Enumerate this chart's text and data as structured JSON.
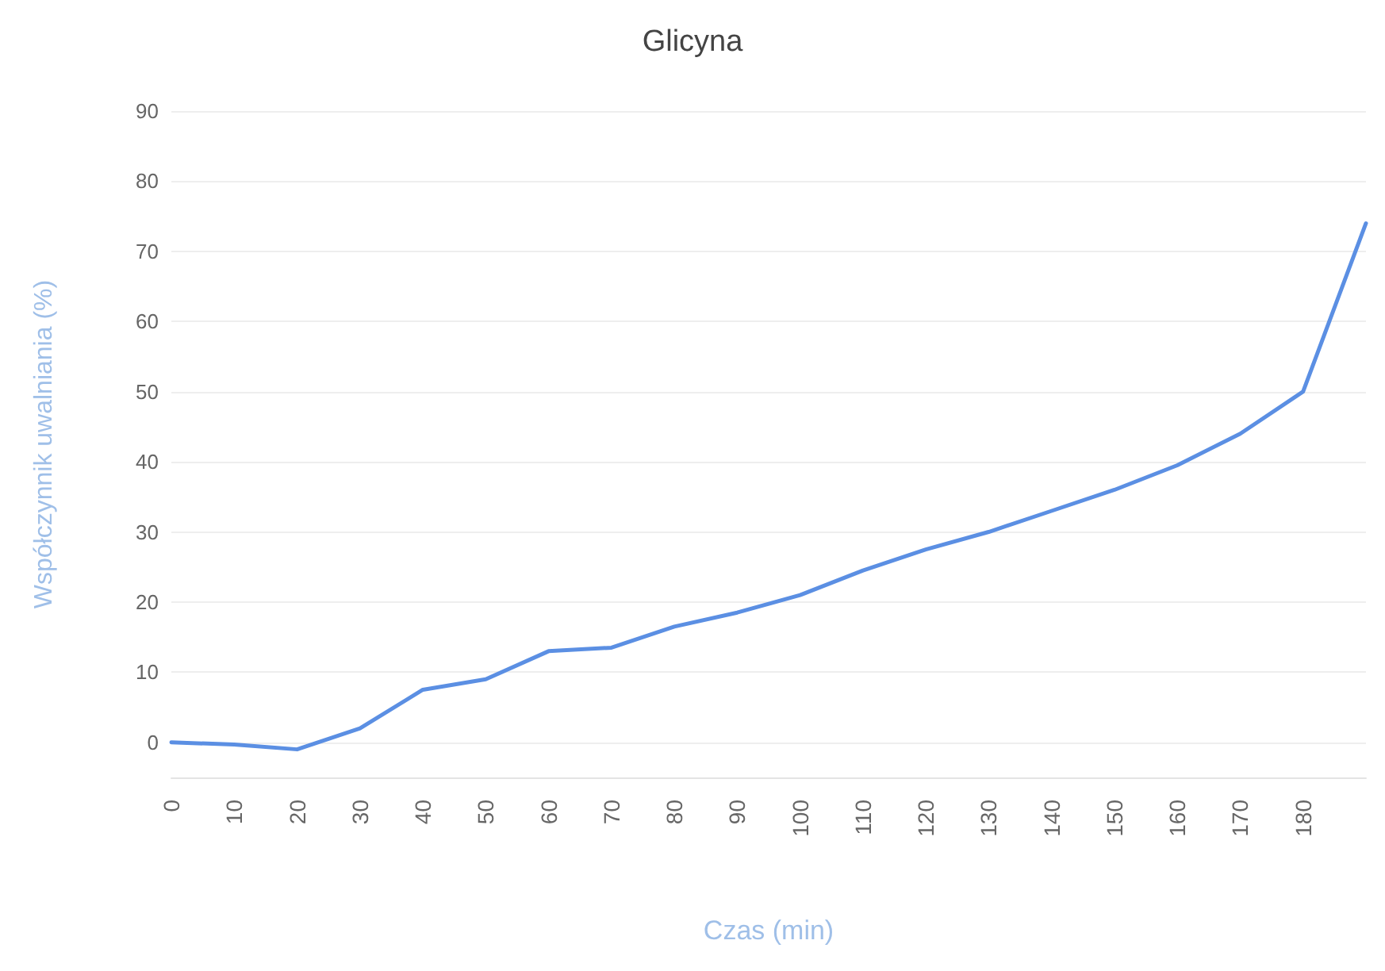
{
  "chart_data": {
    "type": "line",
    "title": "Glicyna",
    "xlabel": "Czas (min)",
    "ylabel": "Współczynnik uwalniania (%)",
    "categories": [
      "0",
      "10",
      "20",
      "30",
      "40",
      "50",
      "60",
      "70",
      "80",
      "90",
      "100",
      "110",
      "120",
      "130",
      "140",
      "150",
      "160",
      "170",
      "180",
      null
    ],
    "series": [
      {
        "color": "#5b8fe3",
        "values": [
          0,
          -0.3,
          -1,
          2,
          7.5,
          9,
          13,
          13.5,
          16.5,
          18.5,
          21,
          24.5,
          27.5,
          30,
          33,
          36,
          39.5,
          44,
          50,
          74
        ]
      }
    ],
    "ylim": [
      -5,
      90
    ],
    "yticks": [
      0,
      10,
      20,
      30,
      40,
      50,
      60,
      70,
      80,
      90
    ],
    "grid": "y",
    "marker": "none",
    "line_style": "solid"
  }
}
